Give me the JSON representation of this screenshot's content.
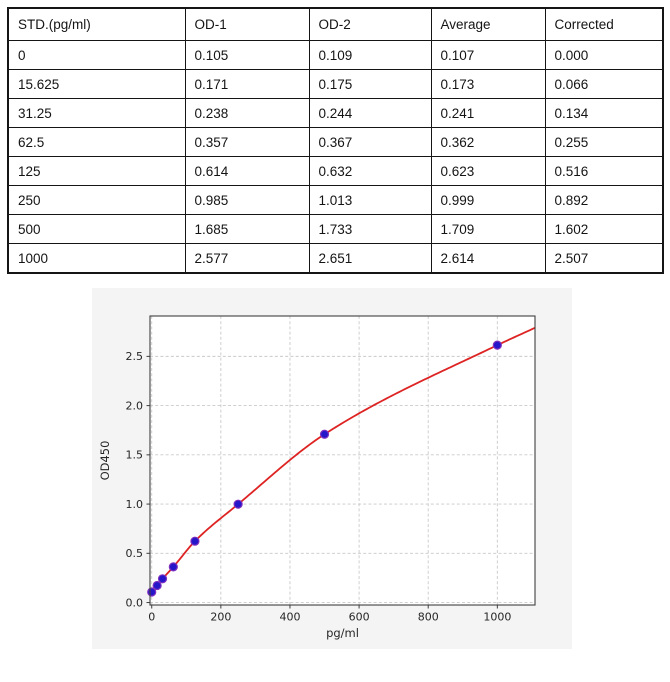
{
  "table": {
    "columns": [
      "STD.(pg/ml)",
      "OD-1",
      "OD-2",
      "Average",
      "Corrected"
    ],
    "rows": [
      [
        "0",
        "0.105",
        "0.109",
        "0.107",
        "0.000"
      ],
      [
        "15.625",
        "0.171",
        "0.175",
        "0.173",
        "0.066"
      ],
      [
        "31.25",
        "0.238",
        "0.244",
        "0.241",
        "0.134"
      ],
      [
        "62.5",
        "0.357",
        "0.367",
        "0.362",
        "0.255"
      ],
      [
        "125",
        "0.614",
        "0.632",
        "0.623",
        "0.516"
      ],
      [
        "250",
        "0.985",
        "1.013",
        "0.999",
        "0.892"
      ],
      [
        "500",
        "1.685",
        "1.733",
        "1.709",
        "1.602"
      ],
      [
        "1000",
        "2.577",
        "2.651",
        "2.614",
        "2.507"
      ]
    ]
  },
  "chart_data": {
    "type": "scatter",
    "title": "",
    "xlabel": "pg/ml",
    "ylabel": "OD450",
    "x": [
      0,
      15.625,
      31.25,
      62.5,
      125,
      250,
      500,
      1000
    ],
    "y": [
      0.107,
      0.173,
      0.241,
      0.362,
      0.623,
      0.999,
      1.709,
      2.614
    ],
    "fit_curve": {
      "style": "smooth through points",
      "extension_point": {
        "x": 1109,
        "y": 2.79
      }
    },
    "x_ticks": [
      0,
      200,
      400,
      600,
      800,
      1000
    ],
    "x_tick_labels": [
      "0",
      "200",
      "400",
      "600",
      "800",
      "1000"
    ],
    "y_ticks": [
      0,
      0.5,
      1,
      1.5,
      2,
      2.5
    ],
    "y_tick_labels": [
      "0.0",
      "0.5",
      "1.0",
      "1.5",
      "2.0",
      "2.5"
    ],
    "xlim": [
      -5,
      1109
    ],
    "ylim": [
      -0.025,
      2.91
    ],
    "grid": true,
    "legend": false,
    "colors": {
      "figure_bg": "#f4f4f4",
      "plot_bg": "#ffffff",
      "grid": "#c9c9c9",
      "spine": "#3f3f3f",
      "tick_text": "#262626",
      "curve": "#de2323",
      "point_fill": "#2517c9",
      "point_edge": "#7d2fc0"
    }
  }
}
